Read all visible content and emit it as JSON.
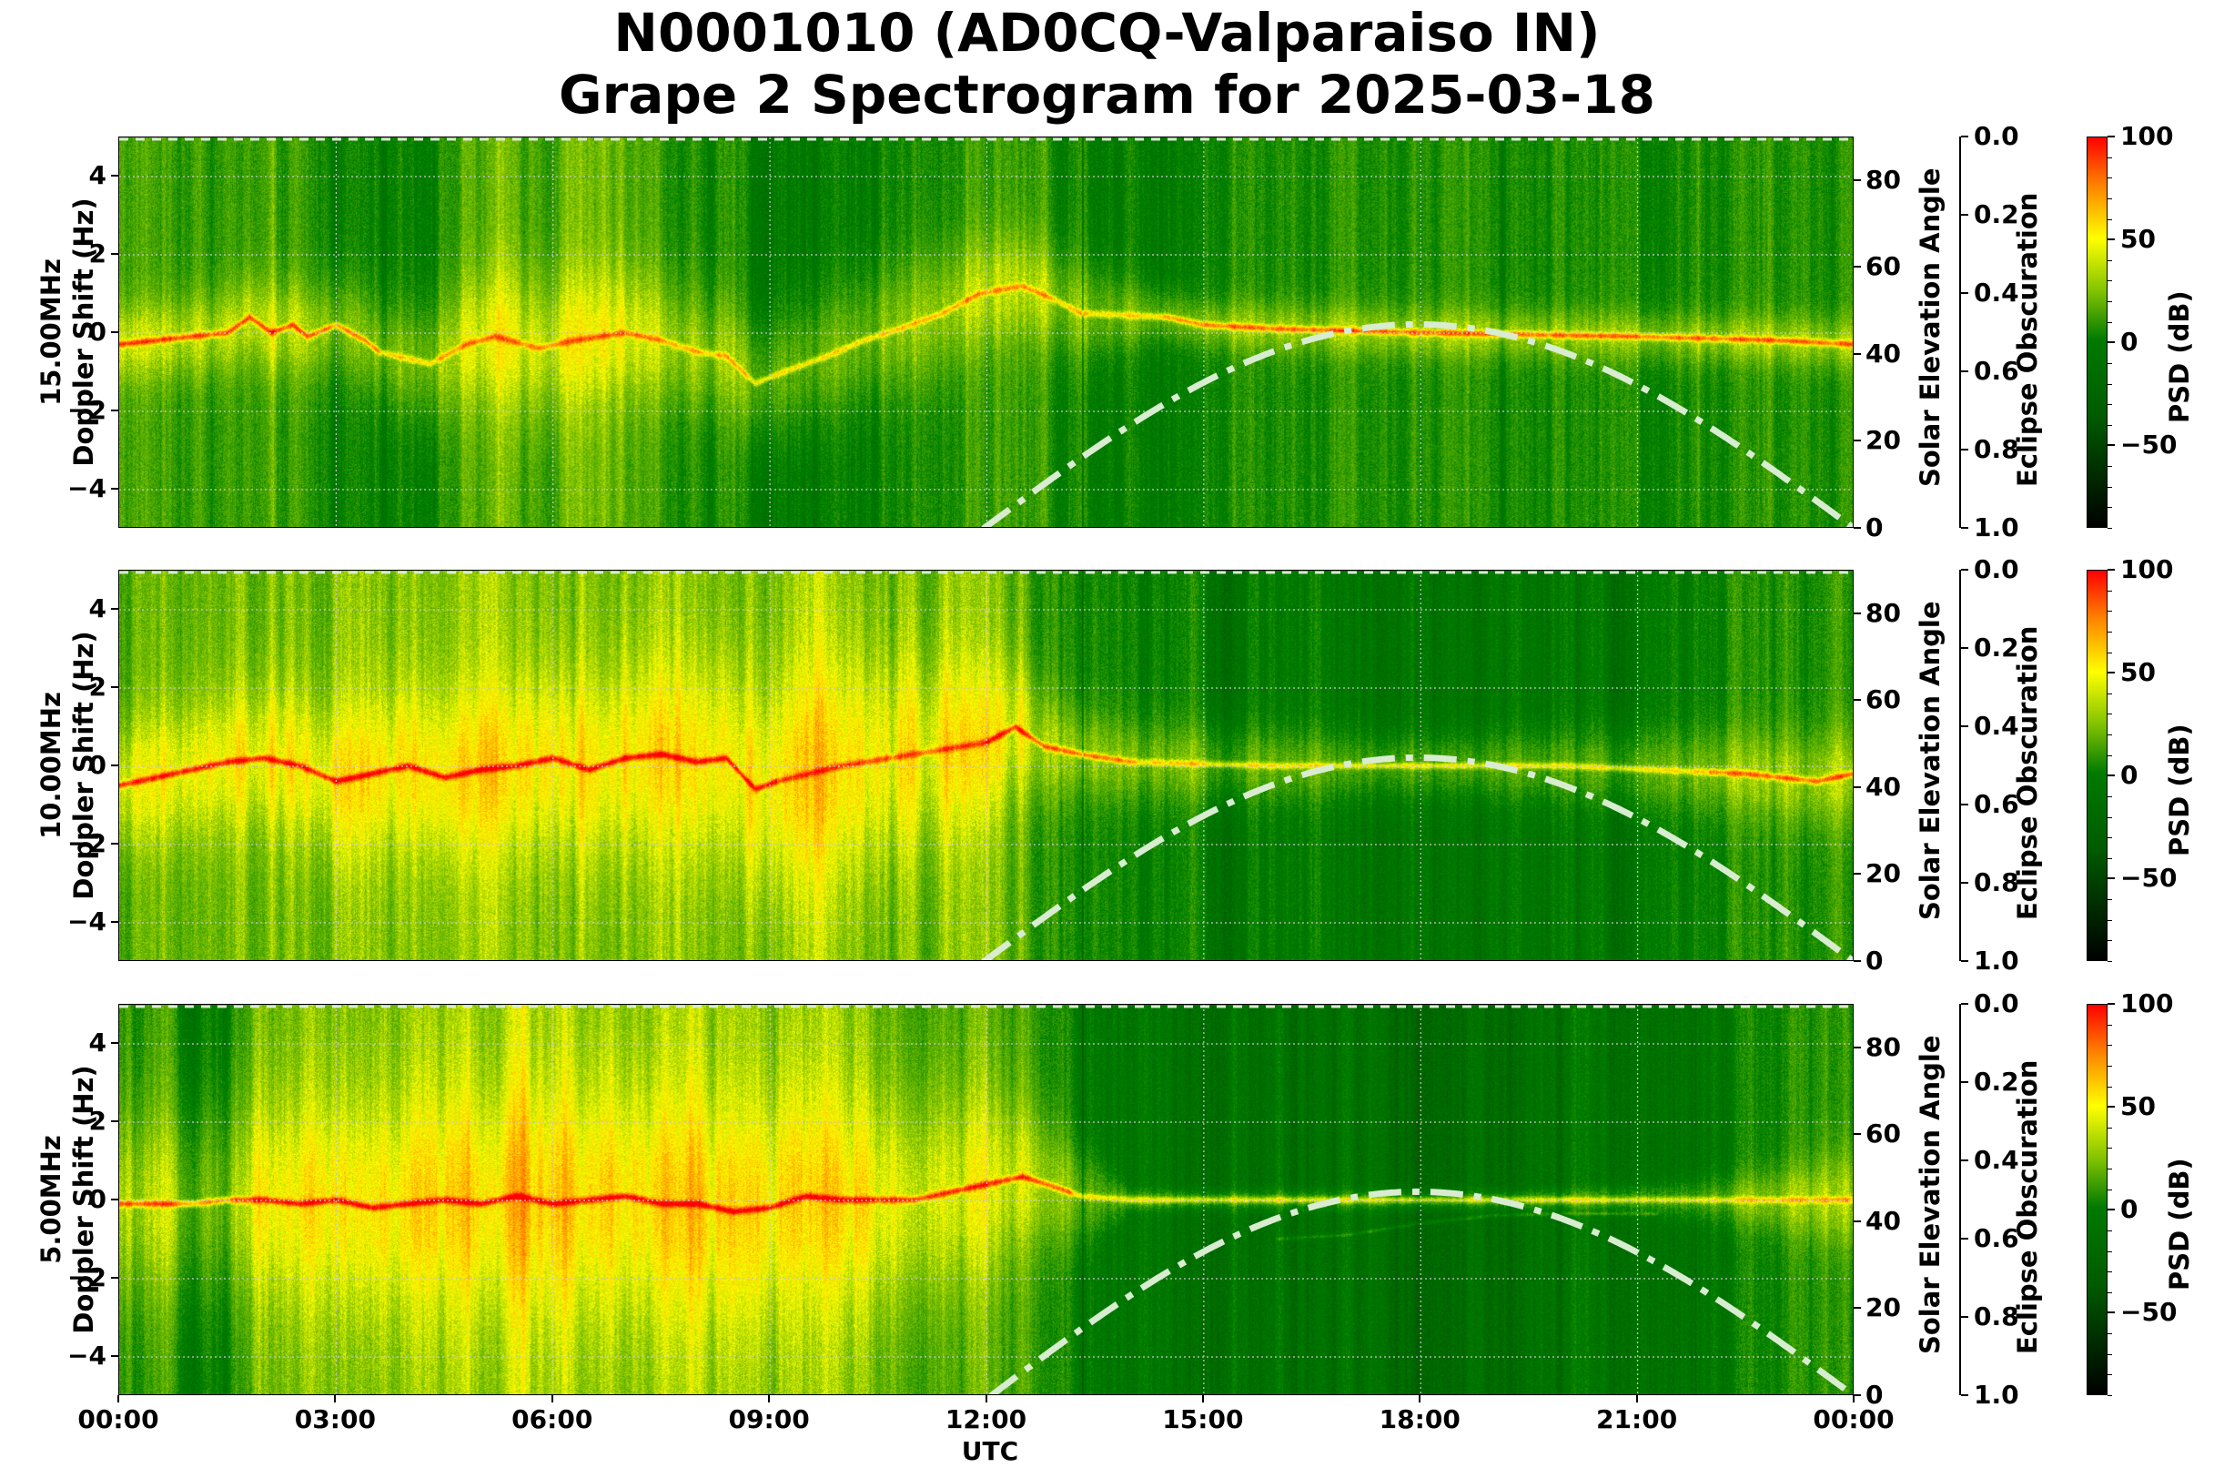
{
  "title": {
    "line1": "N0001010 (AD0CQ-Valparaiso IN)",
    "line2": "Grape 2 Spectrogram for 2025-03-18"
  },
  "x_axis": {
    "label": "UTC",
    "ticks": [
      "00:00",
      "03:00",
      "06:00",
      "09:00",
      "12:00",
      "15:00",
      "18:00",
      "21:00",
      "00:00"
    ]
  },
  "colors": {
    "low": "#000000",
    "mid": "#007a00",
    "upper": "#ffff00",
    "high": "#ff0000",
    "solar_curve": "#d8ecd0",
    "grid": "#c8c8c8"
  },
  "chart_data": [
    {
      "type": "heatmap",
      "title": "15.00MHz",
      "ylabel": "15.00MHz\nDoppler Shift (Hz)",
      "ylabel_line1": "15.00MHz",
      "ylabel_line2": "Doppler Shift (Hz)",
      "xlabel": "UTC",
      "xlim_hours": [
        0,
        24
      ],
      "ylim": [
        -5,
        5
      ],
      "yticks": [
        "4",
        "2",
        "0",
        "−2",
        "−4"
      ],
      "grid": true,
      "secondary_axis": {
        "label": "Solar Elevation Angle",
        "ylim": [
          0,
          90
        ],
        "ticks": [
          "80",
          "60",
          "40",
          "20",
          "0"
        ]
      },
      "eclipse_axis": {
        "label": "Eclipse Obscuration",
        "ylim": [
          1.0,
          0.0
        ],
        "ticks": [
          "0.0",
          "0.2",
          "0.4",
          "0.6",
          "0.8",
          "1.0"
        ]
      },
      "colorbar": {
        "label": "PSD (dB)",
        "range": [
          -90,
          100
        ],
        "ticks": [
          "100",
          "50",
          "0",
          "−50"
        ]
      },
      "solar_elevation_curve": {
        "rise_utc_hours": 11.95,
        "peak_utc_hours": 17.95,
        "peak_deg": 47,
        "set_utc_hours": 24.0,
        "style": "dash-dot"
      },
      "features": {
        "carrier_trace_hz": [
          [
            0,
            -0.3
          ],
          [
            0.5,
            -0.2
          ],
          [
            1.0,
            -0.1
          ],
          [
            1.5,
            0.0
          ],
          [
            1.8,
            0.4
          ],
          [
            2.1,
            0.0
          ],
          [
            2.4,
            0.2
          ],
          [
            2.6,
            -0.1
          ],
          [
            3.0,
            0.2
          ],
          [
            3.4,
            -0.2
          ],
          [
            3.6,
            -0.5
          ],
          [
            4.3,
            -0.8
          ],
          [
            4.8,
            -0.3
          ],
          [
            5.2,
            -0.1
          ],
          [
            5.8,
            -0.4
          ],
          [
            6.3,
            -0.2
          ],
          [
            7.0,
            0.0
          ],
          [
            7.5,
            -0.2
          ],
          [
            8.0,
            -0.5
          ],
          [
            8.4,
            -0.6
          ],
          [
            8.8,
            -1.3
          ],
          [
            9.2,
            -1.0
          ],
          [
            9.8,
            -0.6
          ],
          [
            10.3,
            -0.2
          ],
          [
            10.8,
            0.1
          ],
          [
            11.4,
            0.5
          ],
          [
            11.9,
            1.0
          ],
          [
            12.5,
            1.2
          ],
          [
            13.0,
            0.8
          ],
          [
            13.3,
            0.5
          ],
          [
            14.5,
            0.4
          ],
          [
            15.0,
            0.2
          ],
          [
            16.0,
            0.1
          ],
          [
            18.0,
            0.0
          ],
          [
            21.0,
            -0.1
          ],
          [
            23.0,
            -0.2
          ],
          [
            24.0,
            -0.3
          ]
        ],
        "trace_red_segments": [
          [
            0,
            3.6
          ],
          [
            14.4,
            24
          ]
        ],
        "brightness_profile": [
          [
            0,
            0.45
          ],
          [
            1.5,
            0.4
          ],
          [
            3.5,
            0.3
          ],
          [
            4.0,
            0.32
          ],
          [
            5.0,
            0.45
          ],
          [
            6.5,
            0.5
          ],
          [
            8.0,
            0.35
          ],
          [
            9.0,
            0.25
          ],
          [
            10.5,
            0.3
          ],
          [
            12.0,
            0.45
          ],
          [
            13.2,
            0.35
          ],
          [
            14.4,
            0.3
          ],
          [
            16.5,
            0.4
          ],
          [
            18.0,
            0.35
          ],
          [
            21.0,
            0.35
          ],
          [
            24.0,
            0.35
          ]
        ],
        "spread_profile": [
          [
            0,
            1.2
          ],
          [
            3.6,
            1.6
          ],
          [
            5.5,
            2.2
          ],
          [
            8.5,
            1.8
          ],
          [
            11.0,
            2.0
          ],
          [
            13.3,
            1.5
          ],
          [
            14.4,
            0.8
          ],
          [
            18.0,
            0.8
          ],
          [
            24.0,
            0.8
          ]
        ],
        "dark_line_utc": 13.33
      }
    },
    {
      "type": "heatmap",
      "title": "10.00MHz",
      "ylabel_line1": "10.00MHz",
      "ylabel_line2": "Doppler Shift (Hz)",
      "xlabel": "UTC",
      "xlim_hours": [
        0,
        24
      ],
      "ylim": [
        -5,
        5
      ],
      "yticks": [
        "4",
        "2",
        "0",
        "−2",
        "−4"
      ],
      "grid": true,
      "secondary_axis": {
        "label": "Solar Elevation Angle",
        "ylim": [
          0,
          90
        ],
        "ticks": [
          "80",
          "60",
          "40",
          "20",
          "0"
        ]
      },
      "eclipse_axis": {
        "label": "Eclipse Obscuration",
        "ylim": [
          1.0,
          0.0
        ],
        "ticks": [
          "0.0",
          "0.2",
          "0.4",
          "0.6",
          "0.8",
          "1.0"
        ]
      },
      "colorbar": {
        "label": "PSD (dB)",
        "range": [
          -90,
          100
        ],
        "ticks": [
          "100",
          "50",
          "0",
          "−50"
        ]
      },
      "solar_elevation_curve": {
        "rise_utc_hours": 11.95,
        "peak_utc_hours": 17.95,
        "peak_deg": 47,
        "set_utc_hours": 24.0,
        "style": "dash-dot"
      },
      "features": {
        "carrier_trace_hz": [
          [
            0,
            -0.5
          ],
          [
            0.5,
            -0.3
          ],
          [
            1.0,
            -0.1
          ],
          [
            1.5,
            0.1
          ],
          [
            2.0,
            0.2
          ],
          [
            2.5,
            0.0
          ],
          [
            3.0,
            -0.4
          ],
          [
            3.5,
            -0.2
          ],
          [
            4.0,
            0.0
          ],
          [
            4.5,
            -0.3
          ],
          [
            5.0,
            -0.1
          ],
          [
            5.5,
            0.0
          ],
          [
            6.0,
            0.2
          ],
          [
            6.5,
            -0.1
          ],
          [
            7.0,
            0.2
          ],
          [
            7.5,
            0.3
          ],
          [
            8.0,
            0.1
          ],
          [
            8.4,
            0.2
          ],
          [
            8.8,
            -0.6
          ],
          [
            9.1,
            -0.4
          ],
          [
            10.0,
            0.0
          ],
          [
            11.0,
            0.3
          ],
          [
            12.0,
            0.6
          ],
          [
            12.4,
            1.0
          ],
          [
            12.8,
            0.5
          ],
          [
            13.3,
            0.3
          ],
          [
            14.0,
            0.1
          ],
          [
            16.0,
            0.0
          ],
          [
            20.0,
            0.0
          ],
          [
            22.5,
            -0.2
          ],
          [
            23.5,
            -0.4
          ],
          [
            24.0,
            -0.2
          ]
        ],
        "trace_red_segments": [
          [
            0,
            9.1
          ],
          [
            12.0,
            14.0
          ],
          [
            22.0,
            24
          ]
        ],
        "brightness_profile": [
          [
            0,
            0.45
          ],
          [
            2.0,
            0.5
          ],
          [
            4.0,
            0.55
          ],
          [
            6.0,
            0.55
          ],
          [
            8.0,
            0.55
          ],
          [
            9.5,
            0.6
          ],
          [
            10.5,
            0.5
          ],
          [
            11.5,
            0.55
          ],
          [
            12.5,
            0.5
          ],
          [
            13.3,
            0.3
          ],
          [
            15.0,
            0.25
          ],
          [
            18.0,
            0.2
          ],
          [
            21.0,
            0.25
          ],
          [
            23.0,
            0.35
          ],
          [
            24.0,
            0.4
          ]
        ],
        "spread_profile": [
          [
            0,
            2.0
          ],
          [
            4.0,
            2.5
          ],
          [
            8.0,
            3.0
          ],
          [
            10.0,
            3.5
          ],
          [
            12.0,
            2.5
          ],
          [
            13.3,
            1.4
          ],
          [
            18.0,
            0.9
          ],
          [
            22.0,
            1.3
          ],
          [
            24.0,
            1.5
          ]
        ],
        "dark_line_utc": 13.33
      }
    },
    {
      "type": "heatmap",
      "title": "5.00MHz",
      "ylabel_line1": "5.00MHz",
      "ylabel_line2": "Doppler Shift (Hz)",
      "xlabel": "UTC",
      "xlim_hours": [
        0,
        24
      ],
      "ylim": [
        -5,
        5
      ],
      "yticks": [
        "4",
        "2",
        "0",
        "−2",
        "−4"
      ],
      "grid": true,
      "secondary_axis": {
        "label": "Solar Elevation Angle",
        "ylim": [
          0,
          90
        ],
        "ticks": [
          "80",
          "60",
          "40",
          "20",
          "0"
        ]
      },
      "eclipse_axis": {
        "label": "Eclipse Obscuration",
        "ylim": [
          1.0,
          0.0
        ],
        "ticks": [
          "0.0",
          "0.2",
          "0.4",
          "0.6",
          "0.8",
          "1.0"
        ]
      },
      "colorbar": {
        "label": "PSD (dB)",
        "range": [
          -90,
          100
        ],
        "ticks": [
          "100",
          "50",
          "0",
          "−50"
        ]
      },
      "solar_elevation_curve": {
        "rise_utc_hours": 12.05,
        "peak_utc_hours": 17.95,
        "peak_deg": 47,
        "set_utc_hours": 24.0,
        "style": "dash-dot"
      },
      "features": {
        "carrier_trace_hz": [
          [
            0,
            -0.1
          ],
          [
            1.0,
            -0.1
          ],
          [
            1.5,
            0.0
          ],
          [
            2.0,
            0.0
          ],
          [
            2.5,
            -0.1
          ],
          [
            3.0,
            0.0
          ],
          [
            3.5,
            -0.2
          ],
          [
            4.0,
            -0.1
          ],
          [
            4.5,
            0.0
          ],
          [
            5.0,
            -0.1
          ],
          [
            5.5,
            0.1
          ],
          [
            6.0,
            -0.1
          ],
          [
            6.5,
            0.0
          ],
          [
            7.0,
            0.1
          ],
          [
            7.5,
            -0.1
          ],
          [
            8.0,
            -0.1
          ],
          [
            8.5,
            -0.3
          ],
          [
            9.0,
            -0.2
          ],
          [
            9.5,
            0.1
          ],
          [
            10.0,
            0.0
          ],
          [
            10.5,
            0.0
          ],
          [
            11.0,
            0.0
          ],
          [
            11.5,
            0.2
          ],
          [
            12.0,
            0.4
          ],
          [
            12.5,
            0.6
          ],
          [
            13.0,
            0.3
          ],
          [
            13.3,
            0.1
          ],
          [
            14.0,
            0.0
          ],
          [
            24.0,
            0.0
          ]
        ],
        "trace_red_segments": [
          [
            0,
            13.2
          ]
        ],
        "brightness_profile": [
          [
            0,
            0.35
          ],
          [
            1.5,
            0.3
          ],
          [
            2.0,
            0.55
          ],
          [
            4.0,
            0.55
          ],
          [
            6.0,
            0.6
          ],
          [
            8.0,
            0.6
          ],
          [
            9.5,
            0.55
          ],
          [
            10.5,
            0.5
          ],
          [
            11.5,
            0.45
          ],
          [
            12.5,
            0.45
          ],
          [
            13.3,
            0.3
          ],
          [
            14.0,
            0.18
          ],
          [
            18.0,
            0.15
          ],
          [
            21.0,
            0.18
          ],
          [
            23.0,
            0.3
          ],
          [
            24.0,
            0.4
          ]
        ],
        "spread_profile": [
          [
            0,
            3.0
          ],
          [
            6.0,
            3.5
          ],
          [
            9.0,
            3.5
          ],
          [
            12.0,
            3.0
          ],
          [
            13.3,
            1.5
          ],
          [
            14.0,
            0.3
          ],
          [
            20.0,
            0.3
          ],
          [
            22.0,
            0.6
          ],
          [
            24.0,
            1.5
          ]
        ],
        "dark_line_utc": 13.33,
        "faint_trace_hz": [
          [
            16.0,
            -1.0
          ],
          [
            17.0,
            -0.9
          ],
          [
            18.0,
            -0.6
          ],
          [
            19.0,
            -0.4
          ],
          [
            20.0,
            -0.35
          ],
          [
            21.3,
            -0.35
          ]
        ]
      }
    }
  ]
}
